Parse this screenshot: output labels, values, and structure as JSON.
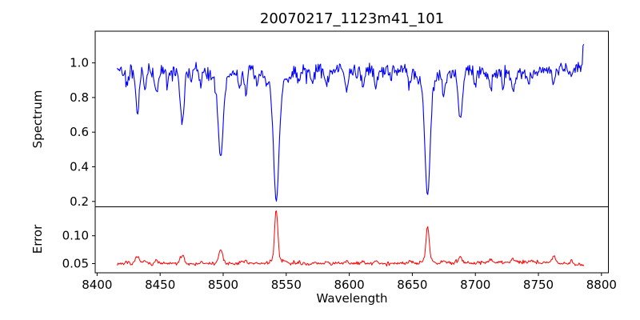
{
  "figure": {
    "title": "20070217_1123m41_101",
    "xlabel": "Wavelength",
    "background_color": "#ffffff",
    "spine_color": "#000000",
    "text_color": "#000000"
  },
  "chart_data": [
    {
      "type": "line",
      "name": "spectrum",
      "title": "20070217_1123m41_101",
      "ylabel": "Spectrum",
      "line_color": "#0000ff",
      "grid": false,
      "legend": "none",
      "xlim": [
        8398.5,
        8805.5
      ],
      "ylim": [
        0.169,
        1.183
      ],
      "x_ticks": [
        8400,
        8450,
        8500,
        8550,
        8600,
        8650,
        8700,
        8750,
        8800
      ],
      "x_tick_labels": [
        "8400",
        "8450",
        "8500",
        "8550",
        "8600",
        "8650",
        "8700",
        "8750",
        "8800"
      ],
      "y_ticks": [
        0.2,
        0.4,
        0.6,
        0.8,
        1.0
      ],
      "y_tick_labels": [
        "0.2",
        "0.4",
        "0.6",
        "0.8",
        "1.0"
      ],
      "x_start": 8416,
      "x_end": 8786,
      "x_step": 0.625,
      "continuum": [
        [
          8416,
          0.968
        ],
        [
          8450,
          0.958
        ],
        [
          8530,
          0.96
        ],
        [
          8600,
          0.95
        ],
        [
          8645,
          0.962
        ],
        [
          8700,
          0.945
        ],
        [
          8735,
          0.94
        ],
        [
          8765,
          0.965
        ],
        [
          8786,
          0.99
        ]
      ],
      "noise": {
        "seed": 42,
        "amp": 0.05,
        "spike_prob": 0.06,
        "spike_amp": 0.05,
        "scale_with_flux": true
      },
      "features": [
        {
          "center": 8424,
          "amplitude": -0.09,
          "sigma": 1.1
        },
        {
          "center": 8432,
          "amplitude": -0.26,
          "sigma": 1.4
        },
        {
          "center": 8438,
          "amplitude": -0.11,
          "sigma": 1.1
        },
        {
          "center": 8447,
          "amplitude": -0.13,
          "sigma": 1.4
        },
        {
          "center": 8456,
          "amplitude": -0.09,
          "sigma": 1.1
        },
        {
          "center": 8467.5,
          "amplitude": -0.29,
          "sigma": 1.6
        },
        {
          "center": 8475,
          "amplitude": -0.06,
          "sigma": 1.0
        },
        {
          "center": 8482,
          "amplitude": -0.08,
          "sigma": 1.1
        },
        {
          "center": 8498,
          "amplitude": -0.44,
          "sigma": 1.9
        },
        {
          "center": 8498,
          "amplitude": -0.07,
          "sigma": 6.0
        },
        {
          "center": 8513,
          "amplitude": -0.1,
          "sigma": 1.2
        },
        {
          "center": 8518,
          "amplitude": -0.13,
          "sigma": 1.3
        },
        {
          "center": 8527,
          "amplitude": -0.08,
          "sigma": 1.1
        },
        {
          "center": 8542.1,
          "amplitude": -0.66,
          "sigma": 2.1
        },
        {
          "center": 8542.1,
          "amplitude": -0.1,
          "sigma": 7.0
        },
        {
          "center": 8560,
          "amplitude": -0.07,
          "sigma": 1.1
        },
        {
          "center": 8571,
          "amplitude": -0.06,
          "sigma": 1.0
        },
        {
          "center": 8582,
          "amplitude": -0.09,
          "sigma": 1.2
        },
        {
          "center": 8598,
          "amplitude": -0.09,
          "sigma": 1.2
        },
        {
          "center": 8611,
          "amplitude": -0.1,
          "sigma": 1.1
        },
        {
          "center": 8621,
          "amplitude": -0.1,
          "sigma": 1.2
        },
        {
          "center": 8633,
          "amplitude": -0.06,
          "sigma": 1.0
        },
        {
          "center": 8648,
          "amplitude": -0.07,
          "sigma": 1.1
        },
        {
          "center": 8662.1,
          "amplitude": -0.63,
          "sigma": 2.0
        },
        {
          "center": 8662.1,
          "amplitude": -0.09,
          "sigma": 6.0
        },
        {
          "center": 8675,
          "amplitude": -0.13,
          "sigma": 1.2
        },
        {
          "center": 8688,
          "amplitude": -0.28,
          "sigma": 1.6
        },
        {
          "center": 8700,
          "amplitude": -0.07,
          "sigma": 1.0
        },
        {
          "center": 8712,
          "amplitude": -0.09,
          "sigma": 1.2
        },
        {
          "center": 8722,
          "amplitude": -0.07,
          "sigma": 1.1
        },
        {
          "center": 8730,
          "amplitude": -0.09,
          "sigma": 1.4
        },
        {
          "center": 8742,
          "amplitude": -0.07,
          "sigma": 1.1
        },
        {
          "center": 8762,
          "amplitude": -0.07,
          "sigma": 1.1
        },
        {
          "center": 8776,
          "amplitude": -0.06,
          "sigma": 1.0
        },
        {
          "center": 8786,
          "amplitude": 0.15,
          "sigma": 0.7
        }
      ]
    },
    {
      "type": "line",
      "name": "error",
      "ylabel": "Error",
      "line_color": "#ff0000",
      "grid": false,
      "legend": "none",
      "xlim": [
        8398.5,
        8805.5
      ],
      "ylim": [
        0.0335,
        0.152
      ],
      "x_ticks": [
        8400,
        8450,
        8500,
        8550,
        8600,
        8650,
        8700,
        8750,
        8800
      ],
      "x_tick_labels": [
        "8400",
        "8450",
        "8500",
        "8550",
        "8600",
        "8650",
        "8700",
        "8750",
        "8800"
      ],
      "y_ticks": [
        0.05,
        0.1
      ],
      "y_tick_labels": [
        "0.05",
        "0.10"
      ],
      "x_start": 8416,
      "x_end": 8786,
      "x_step": 0.625,
      "continuum": [
        [
          8416,
          0.05
        ],
        [
          8540,
          0.0498
        ],
        [
          8640,
          0.0505
        ],
        [
          8700,
          0.0518
        ],
        [
          8742,
          0.0528
        ],
        [
          8768,
          0.0512
        ],
        [
          8786,
          0.0478
        ]
      ],
      "noise": {
        "seed": 7,
        "amp": 0.0036,
        "spike_prob": 0.05,
        "spike_amp": 0.004,
        "scale_with_flux": false
      },
      "features": [
        {
          "center": 8424,
          "amplitude": 0.004,
          "sigma": 1.2
        },
        {
          "center": 8432,
          "amplitude": 0.012,
          "sigma": 1.4
        },
        {
          "center": 8438,
          "amplitude": 0.005,
          "sigma": 1.1
        },
        {
          "center": 8447,
          "amplitude": 0.006,
          "sigma": 1.3
        },
        {
          "center": 8467.5,
          "amplitude": 0.016,
          "sigma": 1.5
        },
        {
          "center": 8482,
          "amplitude": 0.003,
          "sigma": 1.0
        },
        {
          "center": 8498,
          "amplitude": 0.024,
          "sigma": 1.6
        },
        {
          "center": 8513,
          "amplitude": 0.004,
          "sigma": 1.2
        },
        {
          "center": 8518,
          "amplitude": 0.006,
          "sigma": 1.2
        },
        {
          "center": 8542.1,
          "amplitude": 0.089,
          "sigma": 1.2
        },
        {
          "center": 8542.1,
          "amplitude": 0.009,
          "sigma": 4.0
        },
        {
          "center": 8549,
          "amplitude": 0.005,
          "sigma": 1.0
        },
        {
          "center": 8560,
          "amplitude": 0.003,
          "sigma": 1.0
        },
        {
          "center": 8582,
          "amplitude": 0.004,
          "sigma": 1.1
        },
        {
          "center": 8598,
          "amplitude": 0.004,
          "sigma": 1.1
        },
        {
          "center": 8611,
          "amplitude": 0.003,
          "sigma": 1.1
        },
        {
          "center": 8621,
          "amplitude": 0.004,
          "sigma": 1.2
        },
        {
          "center": 8648,
          "amplitude": 0.005,
          "sigma": 1.4
        },
        {
          "center": 8662.1,
          "amplitude": 0.06,
          "sigma": 1.2
        },
        {
          "center": 8662.1,
          "amplitude": 0.007,
          "sigma": 3.5
        },
        {
          "center": 8675,
          "amplitude": 0.005,
          "sigma": 1.2
        },
        {
          "center": 8688,
          "amplitude": 0.011,
          "sigma": 1.4
        },
        {
          "center": 8712,
          "amplitude": 0.004,
          "sigma": 1.2
        },
        {
          "center": 8730,
          "amplitude": 0.005,
          "sigma": 1.5
        },
        {
          "center": 8745,
          "amplitude": 0.004,
          "sigma": 1.2
        },
        {
          "center": 8762,
          "amplitude": 0.013,
          "sigma": 1.1
        },
        {
          "center": 8776,
          "amplitude": 0.007,
          "sigma": 1.1
        }
      ],
      "xlabel": "Wavelength"
    }
  ]
}
